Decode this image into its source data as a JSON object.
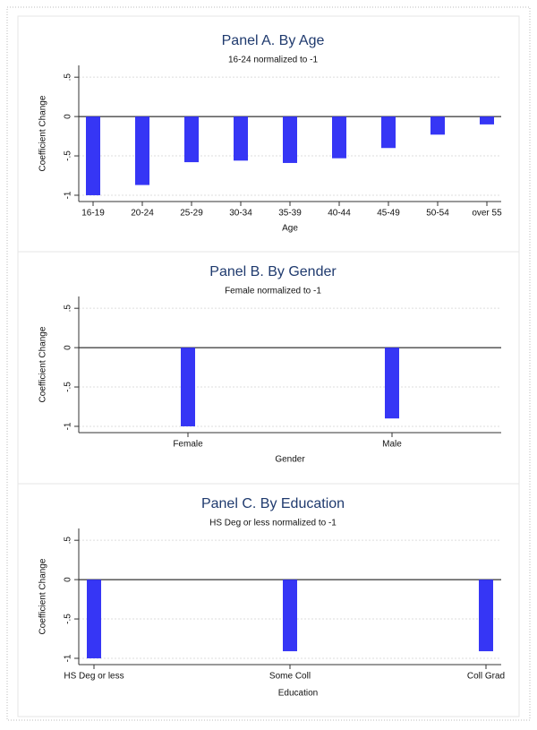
{
  "chart_data": [
    {
      "type": "bar",
      "title": "Panel A.  By Age",
      "subtitle": "16-24 normalized to -1",
      "x_label": "Age",
      "y_label": "Coefficient Change",
      "categories": [
        "16-19",
        "20-24",
        "25-29",
        "30-34",
        "35-39",
        "40-44",
        "45-49",
        "50-54",
        "over 55"
      ],
      "values": [
        -1,
        -0.87,
        -0.58,
        -0.56,
        -0.59,
        -0.53,
        -0.4,
        -0.23,
        -0.1
      ],
      "color": "#3636f5",
      "ylim": [
        -1.08,
        0.65
      ],
      "yticks": [
        {
          "value": 0.5,
          "label": ".5"
        },
        0,
        {
          "value": -0.5,
          "label": "-.5"
        },
        -1
      ],
      "grid": true
    },
    {
      "type": "bar",
      "title": "Panel B.  By Gender",
      "subtitle": "Female normalized to -1",
      "x_label": "Gender",
      "y_label": "Coefficient Change",
      "categories": [
        "Female",
        "Male"
      ],
      "values": [
        -1,
        -0.9
      ],
      "color": "#3636f5",
      "ylim": [
        -1.08,
        0.65
      ],
      "yticks": [
        {
          "value": 0.5,
          "label": ".5"
        },
        0,
        {
          "value": -0.5,
          "label": "-.5"
        },
        -1
      ],
      "grid": true
    },
    {
      "type": "bar",
      "title": "Panel C.  By Education",
      "subtitle": "HS Deg or less normalized to -1",
      "x_label": "Education",
      "y_label": "Coefficient Change",
      "categories": [
        "HS Deg or less",
        "Some Coll",
        "Coll Grad"
      ],
      "values": [
        -1,
        -0.91,
        -0.91
      ],
      "color": "#3636f5",
      "ylim": [
        -1.08,
        0.65
      ],
      "yticks": [
        {
          "value": 0.5,
          "label": ".5"
        },
        0,
        {
          "value": -0.5,
          "label": "-.5"
        },
        -1
      ],
      "grid": true
    }
  ]
}
